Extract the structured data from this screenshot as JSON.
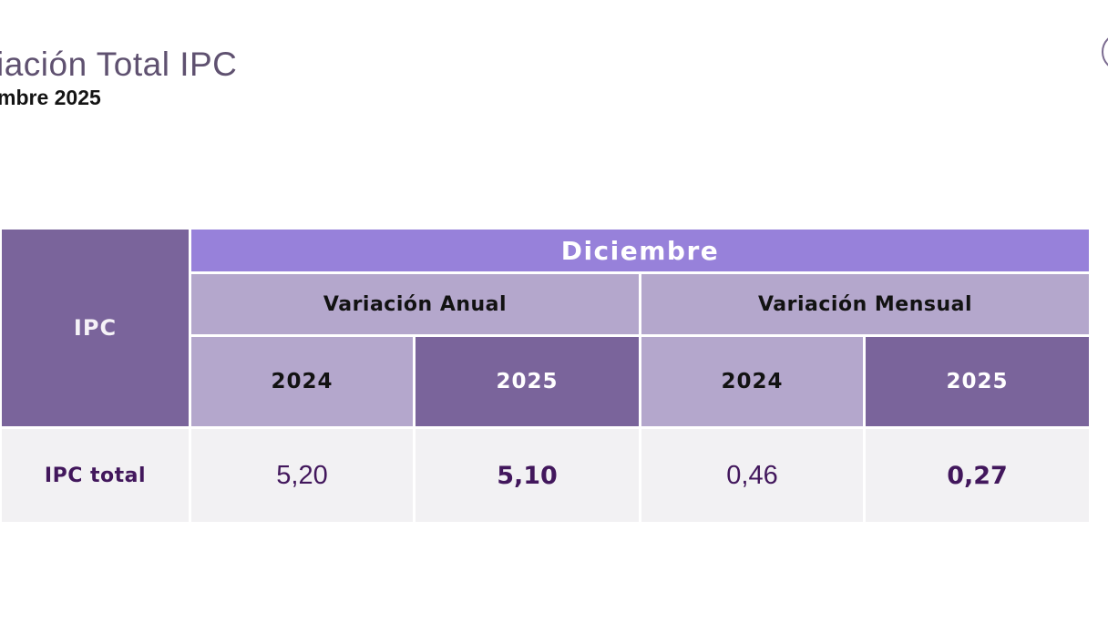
{
  "page": {
    "title": "iación Total IPC",
    "subtitle": "mbre 2025"
  },
  "logo": {
    "description": "partial circle outline cut off at right edge",
    "stroke_color": "#7b6b90"
  },
  "colors": {
    "month_bar": "#9781da",
    "dark_purple_cell": "#7a649b",
    "light_purple_cell": "#b4a7cc",
    "data_row_background": "#f2f1f3",
    "data_text": "#42175c",
    "title_text": "#5f5170",
    "subtitle_text": "#141414"
  },
  "table": {
    "corner_label": "IPC",
    "month_header": "Diciembre",
    "group_headers": [
      "Variación Anual",
      "Variación Mensual"
    ],
    "year_headers": [
      "2024",
      "2025",
      "2024",
      "2025"
    ],
    "rows": [
      {
        "label": "IPC total",
        "values": [
          "5,20",
          "5,10",
          "0,46",
          "0,27"
        ]
      }
    ]
  }
}
